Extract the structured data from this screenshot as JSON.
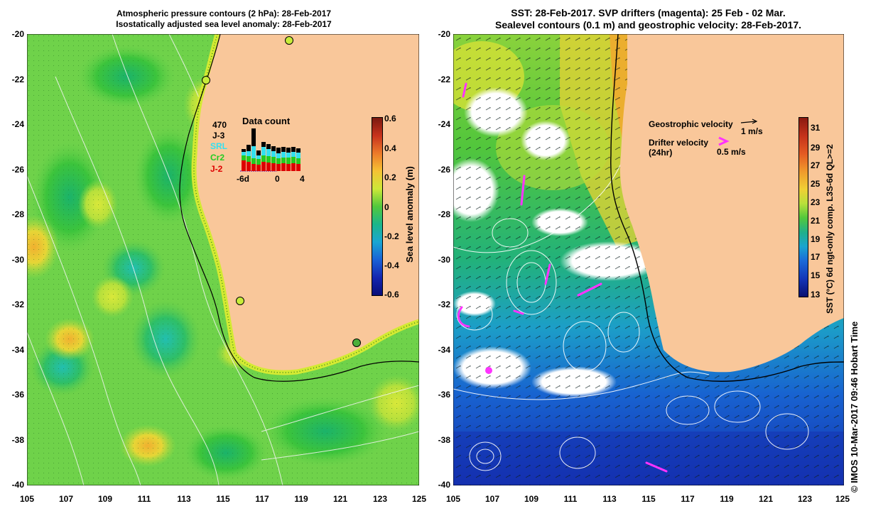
{
  "left_panel": {
    "title_line1": "Atmospheric pressure contours (2 hPa): 28-Feb-2017",
    "title_line2": "Isostatically adjusted sea level anomaly: 28-Feb-2017",
    "colorbar_label": "Sea level anomaly (m)",
    "colorbar_ticks": [
      "0.6",
      "0.4",
      "0.2",
      "0",
      "-0.2",
      "-0.4",
      "-0.6"
    ],
    "inset": {
      "title": "Data count",
      "total": "470",
      "legend": [
        {
          "label": "J-3",
          "color": "#000000"
        },
        {
          "label": "SRL",
          "color": "#33e0f0"
        },
        {
          "label": "Cr2",
          "color": "#22cc22"
        },
        {
          "label": "J-2",
          "color": "#dd0000"
        }
      ],
      "x_labels": [
        "-6d",
        "0",
        "4"
      ]
    }
  },
  "right_panel": {
    "title_line1": "SST: 28-Feb-2017. SVP drifters (magenta): 25 Feb - 02 Mar.",
    "title_line2": "Sealevel contours (0.1 m) and geostrophic velocity: 28-Feb-2017.",
    "colorbar_label": "SST (°C) 6d ngt-only comp. L3S-6d QL>=2",
    "colorbar_ticks": [
      "31",
      "29",
      "27",
      "25",
      "23",
      "21",
      "19",
      "17",
      "15",
      "13"
    ],
    "legend": {
      "geostrophic_label": "Geostrophic velocity",
      "geostrophic_scale": "1 m/s",
      "drifter_label": "Drifter velocity",
      "drifter_sub": "(24hr)",
      "drifter_scale": "0.5 m/s"
    }
  },
  "axes": {
    "y_ticks": [
      "-20",
      "-22",
      "-24",
      "-26",
      "-28",
      "-30",
      "-32",
      "-34",
      "-36",
      "-38",
      "-40"
    ],
    "x_ticks": [
      "105",
      "107",
      "109",
      "111",
      "113",
      "115",
      "117",
      "119",
      "121",
      "123",
      "125"
    ]
  },
  "credit": "© IMOS 10-Mar-2017 09:46 Hobart Time",
  "colors": {
    "land": "#f9c79a",
    "drifter": "#ff33ff"
  }
}
